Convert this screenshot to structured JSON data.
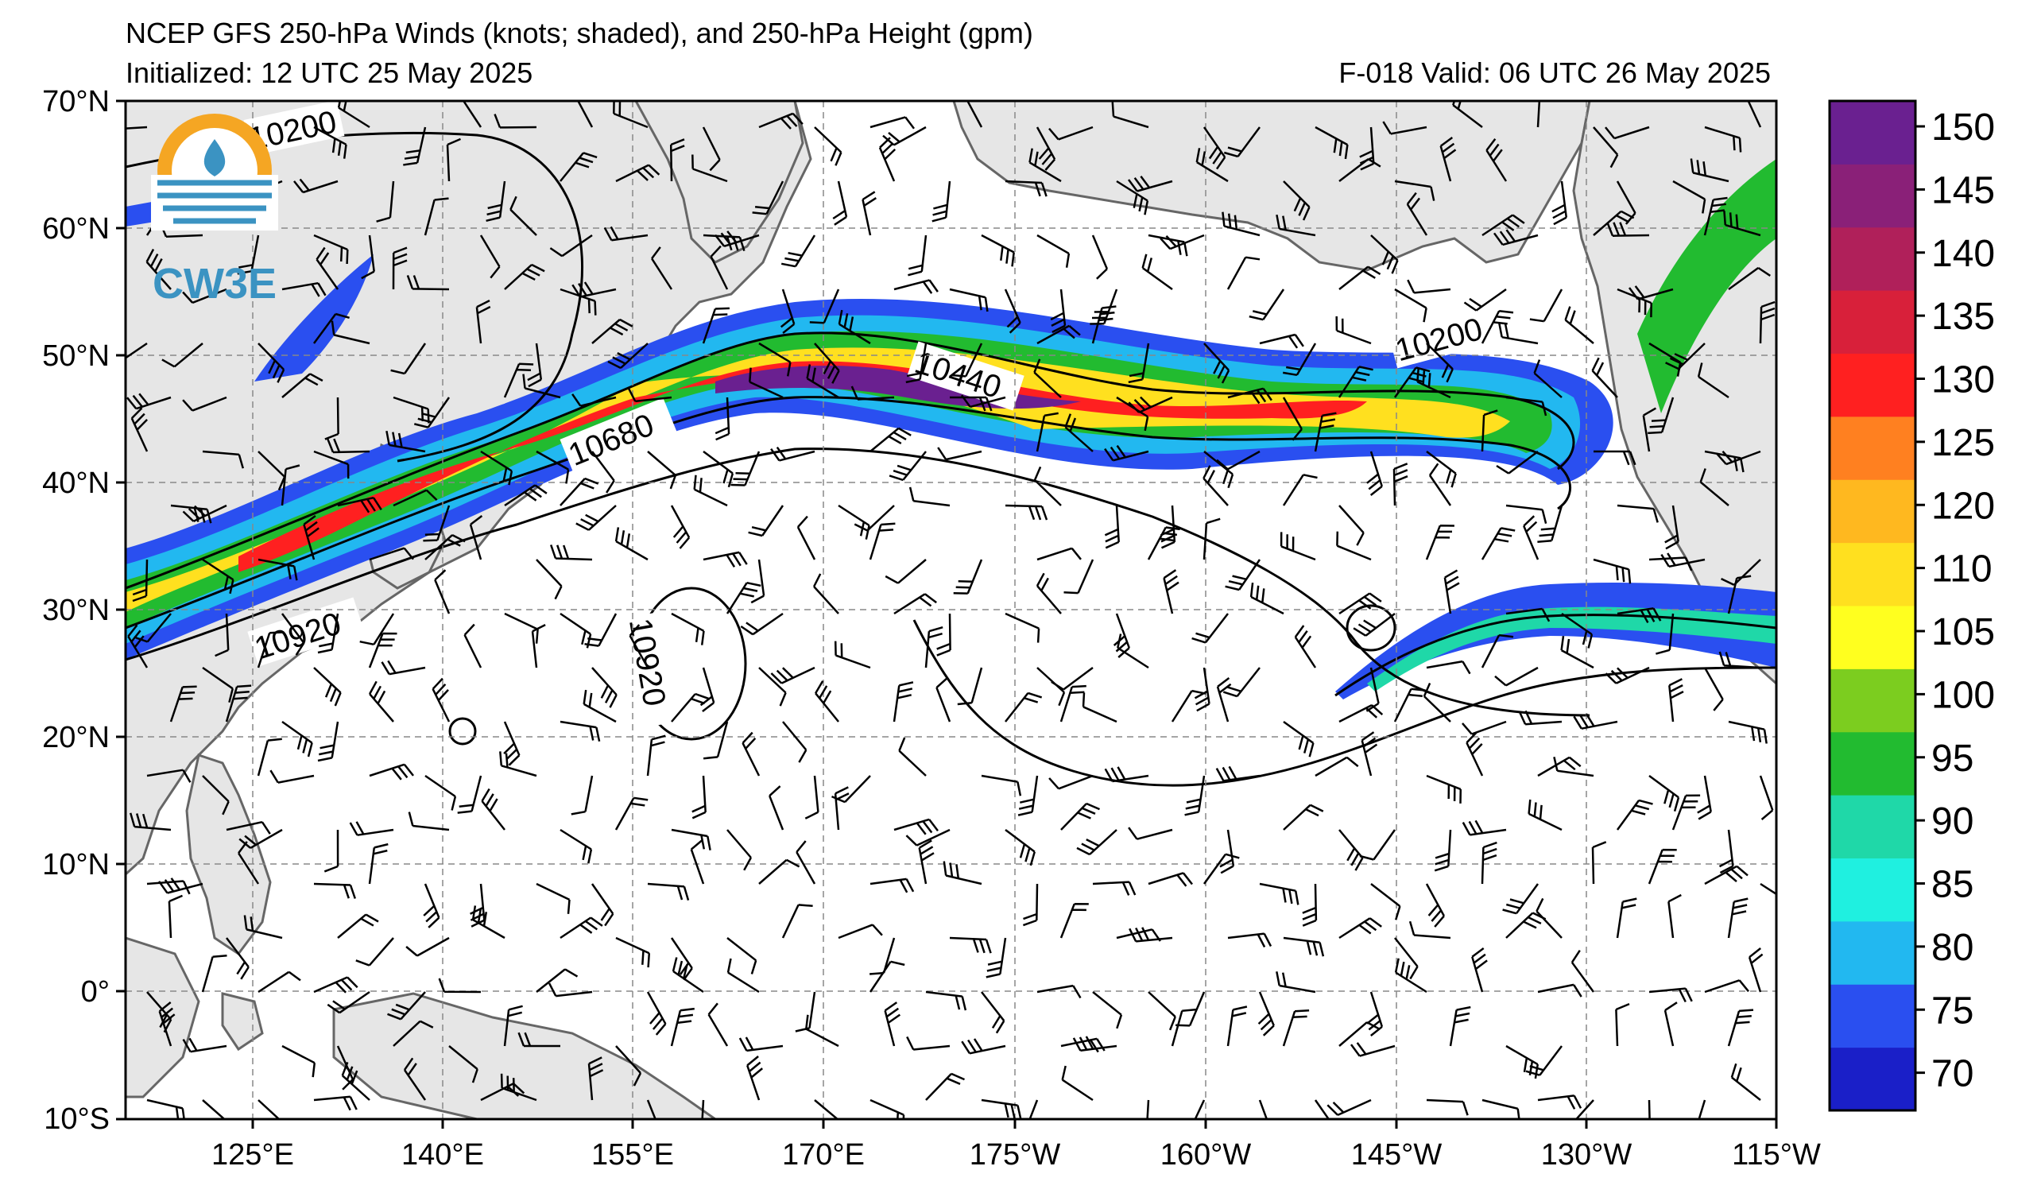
{
  "title": {
    "main": "NCEP GFS 250-hPa Winds (knots; shaded), and 250-hPa Height (gpm)",
    "initialized": "Initialized: 12 UTC 25 May 2025",
    "valid": "F-018  Valid: 06 UTC 26 May 2025"
  },
  "logo": {
    "text": "CW3E",
    "icon": "cw3e-logo-icon"
  },
  "axes": {
    "lat_labels": [
      "70°N",
      "60°N",
      "50°N",
      "40°N",
      "30°N",
      "20°N",
      "10°N",
      "0°",
      "10°S"
    ],
    "lon_labels": [
      "125°E",
      "140°E",
      "155°E",
      "170°E",
      "175°W",
      "160°W",
      "145°W",
      "130°W",
      "115°W"
    ]
  },
  "contour_labels": [
    "10200",
    "10440",
    "10680",
    "10920",
    "10920",
    "10200"
  ],
  "colorbar": {
    "labels": [
      "150",
      "145",
      "140",
      "135",
      "130",
      "125",
      "120",
      "110",
      "105",
      "100",
      "95",
      "90",
      "85",
      "80",
      "75",
      "70"
    ],
    "colors": [
      "#1a1fc8",
      "#2a4ff0",
      "#22b8f0",
      "#1ff0e0",
      "#1fd8a8",
      "#22bb30",
      "#7ccd1f",
      "#ffff1f",
      "#ffe01f",
      "#ffb81f",
      "#ff8020",
      "#ff2020",
      "#d8203a",
      "#b0205a",
      "#8a2078",
      "#6a2090"
    ]
  },
  "colors": {
    "land": "#e6e6e6",
    "coast": "#666666",
    "grid": "#888888",
    "contour": "#000000",
    "logo_orange": "#f5a623",
    "logo_blue": "#3b93c2"
  }
}
